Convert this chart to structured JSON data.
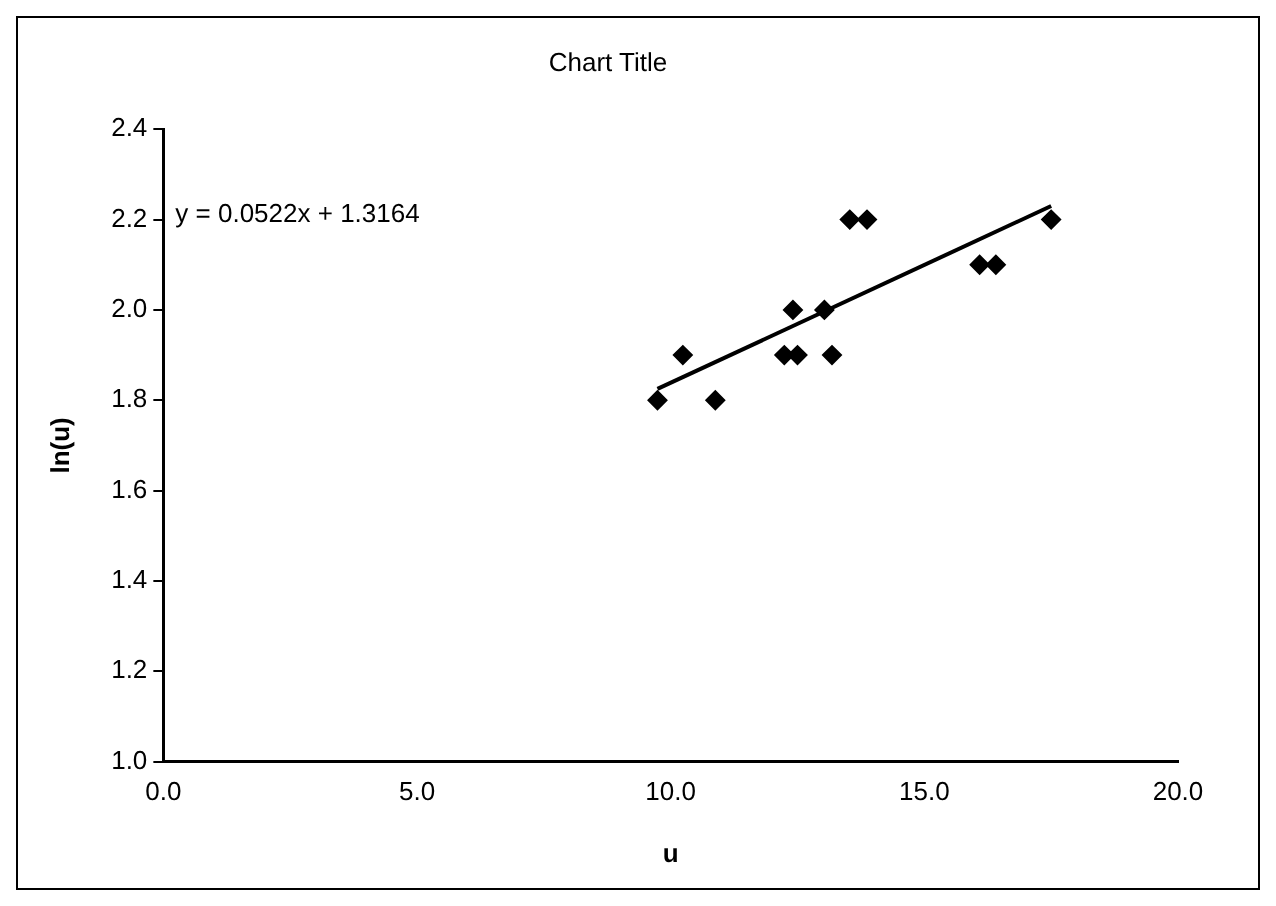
{
  "chart_data": {
    "type": "scatter",
    "title": "Chart Title",
    "xlabel": "u",
    "ylabel": "ln(u)",
    "annotations": [
      "y = 0.0522x + 1.3164"
    ],
    "series": [
      {
        "color": "#000000",
        "marker": "diamond",
        "x": [
          9.74,
          10.24,
          10.88,
          12.24,
          12.5,
          13.18,
          12.41,
          13.03,
          13.53,
          13.87,
          16.09,
          16.41,
          17.5
        ],
        "values": [
          1.8,
          1.9,
          1.8,
          1.9,
          1.9,
          1.9,
          2.0,
          2.0,
          2.2,
          2.2,
          2.1,
          2.1,
          2.2
        ]
      },
      {
        "type": "line",
        "color": "#000000",
        "line_style": "solid",
        "x": [
          9.74,
          17.5
        ],
        "values": [
          1.825,
          2.23
        ]
      }
    ],
    "xlim": [
      0,
      20
    ],
    "xticks": [
      {
        "value": 0,
        "label": "0.0"
      },
      {
        "value": 5,
        "label": "5.0"
      },
      {
        "value": 10,
        "label": "10.0"
      },
      {
        "value": 15,
        "label": "15.0"
      },
      {
        "value": 20,
        "label": "20.0"
      }
    ],
    "ylim": [
      1,
      2.4
    ],
    "yticks": [
      {
        "value": 1,
        "label": "1.0"
      },
      {
        "value": 1.2,
        "label": "1.2"
      },
      {
        "value": 1.4,
        "label": "1.4"
      },
      {
        "value": 1.6,
        "label": "1.6"
      },
      {
        "value": 1.8,
        "label": "1.8"
      },
      {
        "value": 2,
        "label": "2.0"
      },
      {
        "value": 2.2,
        "label": "2.2"
      },
      {
        "value": 2.4,
        "label": "2.4"
      }
    ],
    "grid": false,
    "legend": false
  }
}
